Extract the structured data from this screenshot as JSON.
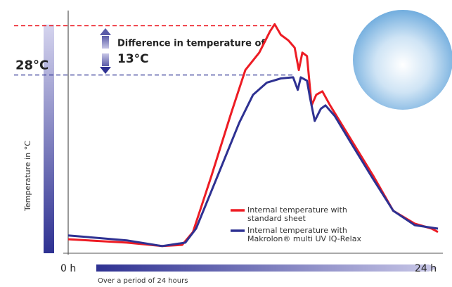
{
  "chart_data": {
    "type": "line",
    "y_axis_label": "Temperature in °C",
    "x_axis_label": "Over a period of 24 hours",
    "xlim": [
      0,
      24
    ],
    "xticks": [
      {
        "value": 0,
        "label": "0 h"
      },
      {
        "value": 24,
        "label": "24 h"
      }
    ],
    "ylim": [
      -19,
      45
    ],
    "yticks": [
      {
        "value": 28,
        "label": "28°C"
      }
    ],
    "tick_line_color": "#2e3192",
    "reference_line": {
      "value": 41,
      "color": "#ed1c24"
    },
    "annotations": [
      "Difference in temperature of",
      "13°C"
    ],
    "series": [
      {
        "name": "Internal temperature with standard sheet",
        "color": "#ed1c24",
        "x": [
          0,
          3.8,
          6.1,
          7.4,
          8.1,
          9.3,
          10.6,
          11.5,
          12.4,
          13.1,
          13.4,
          13.8,
          14.3,
          14.7,
          14.97,
          15.2,
          15.5,
          15.8,
          16.1,
          16.5,
          17.0,
          18.4,
          19.8,
          21.1,
          22.5,
          23.6,
          24
        ],
        "values": [
          -15.3,
          -16.2,
          -17.1,
          -16.8,
          -13.4,
          1.4,
          18.2,
          29.3,
          33.9,
          39.5,
          41.4,
          38.6,
          37.1,
          35.2,
          29.3,
          33.9,
          33.0,
          20.0,
          22.8,
          23.7,
          20.0,
          10.7,
          1.4,
          -7.8,
          -11.2,
          -12.5,
          -13.4
        ]
      },
      {
        "name": "Internal temperature with Makrolon® multi UV IQ-Relax",
        "color": "#2e3192",
        "x": [
          0,
          3.8,
          6.1,
          7.6,
          8.3,
          9.7,
          11.1,
          12.0,
          12.9,
          13.8,
          14.6,
          14.9,
          15.1,
          15.5,
          15.7,
          16.0,
          16.4,
          16.7,
          17.3,
          18.4,
          19.8,
          21.1,
          22.5,
          24
        ],
        "values": [
          -14.3,
          -15.6,
          -17.1,
          -16.2,
          -12.5,
          1.4,
          15.4,
          22.8,
          26.0,
          27.1,
          27.4,
          24.1,
          27.4,
          26.5,
          21.9,
          15.9,
          19.1,
          20.0,
          17.2,
          9.8,
          0.5,
          -7.8,
          -11.6,
          -12.5
        ]
      }
    ]
  }
}
